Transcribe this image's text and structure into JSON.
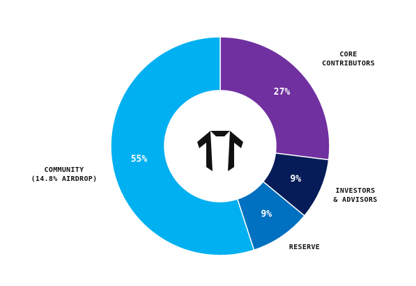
{
  "colors": {
    "background": "#ffffff",
    "center_hole": "#ffffff",
    "logo": "#111111"
  },
  "center": {
    "icon": "double-arrow-logo-icon"
  },
  "chart_data": {
    "type": "pie",
    "donut": true,
    "title": "",
    "slices": [
      {
        "label_lines": [
          "CORE",
          "CONTRIBUTORS"
        ],
        "value": 27,
        "value_label": "27%",
        "color": "#7030a0"
      },
      {
        "label_lines": [
          "INVESTORS",
          "& ADVISORS"
        ],
        "value": 9,
        "value_label": "9%",
        "color": "#061c58"
      },
      {
        "label_lines": [
          "RESERVE"
        ],
        "value": 9,
        "value_label": "9%",
        "color": "#0070c0"
      },
      {
        "label_lines": [
          "COMMUNITY",
          "(14.8% AIRDROP)"
        ],
        "value": 55,
        "value_label": "55%",
        "color": "#00b0f0"
      }
    ]
  }
}
